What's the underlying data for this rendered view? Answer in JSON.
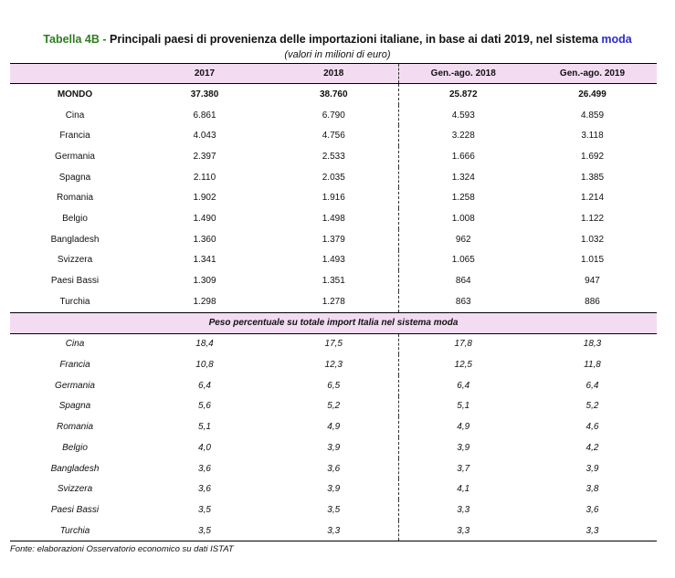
{
  "title": {
    "label": "Tabella 4B -",
    "text": " Principali paesi di provenienza delle importazioni italiane, in base ai dati 2019, nel sistema ",
    "highlight": "moda"
  },
  "subtitle": "(valori in milioni di euro)",
  "columns": [
    "",
    "2017",
    "2018",
    "Gen.-ago. 2018",
    "Gen.-ago. 2019"
  ],
  "values": [
    [
      "MONDO",
      "37.380",
      "38.760",
      "25.872",
      "26.499"
    ],
    [
      "Cina",
      "6.861",
      "6.790",
      "4.593",
      "4.859"
    ],
    [
      "Francia",
      "4.043",
      "4.756",
      "3.228",
      "3.118"
    ],
    [
      "Germania",
      "2.397",
      "2.533",
      "1.666",
      "1.692"
    ],
    [
      "Spagna",
      "2.110",
      "2.035",
      "1.324",
      "1.385"
    ],
    [
      "Romania",
      "1.902",
      "1.916",
      "1.258",
      "1.214"
    ],
    [
      "Belgio",
      "1.490",
      "1.498",
      "1.008",
      "1.122"
    ],
    [
      "Bangladesh",
      "1.360",
      "1.379",
      "962",
      "1.032"
    ],
    [
      "Svizzera",
      "1.341",
      "1.493",
      "1.065",
      "1.015"
    ],
    [
      "Paesi Bassi",
      "1.309",
      "1.351",
      "864",
      "947"
    ],
    [
      "Turchia",
      "1.298",
      "1.278",
      "863",
      "886"
    ]
  ],
  "section_title": "Peso percentuale su totale import Italia nel sistema moda",
  "percentages": [
    [
      "Cina",
      "18,4",
      "17,5",
      "17,8",
      "18,3"
    ],
    [
      "Francia",
      "10,8",
      "12,3",
      "12,5",
      "11,8"
    ],
    [
      "Germania",
      "6,4",
      "6,5",
      "6,4",
      "6,4"
    ],
    [
      "Spagna",
      "5,6",
      "5,2",
      "5,1",
      "5,2"
    ],
    [
      "Romania",
      "5,1",
      "4,9",
      "4,9",
      "4,6"
    ],
    [
      "Belgio",
      "4,0",
      "3,9",
      "3,9",
      "4,2"
    ],
    [
      "Bangladesh",
      "3,6",
      "3,6",
      "3,7",
      "3,9"
    ],
    [
      "Svizzera",
      "3,6",
      "3,9",
      "4,1",
      "3,8"
    ],
    [
      "Paesi Bassi",
      "3,5",
      "3,5",
      "3,3",
      "3,6"
    ],
    [
      "Turchia",
      "3,5",
      "3,3",
      "3,3",
      "3,3"
    ]
  ],
  "source": "Fonte: elaborazioni Osservatorio economico su dati ISTAT"
}
